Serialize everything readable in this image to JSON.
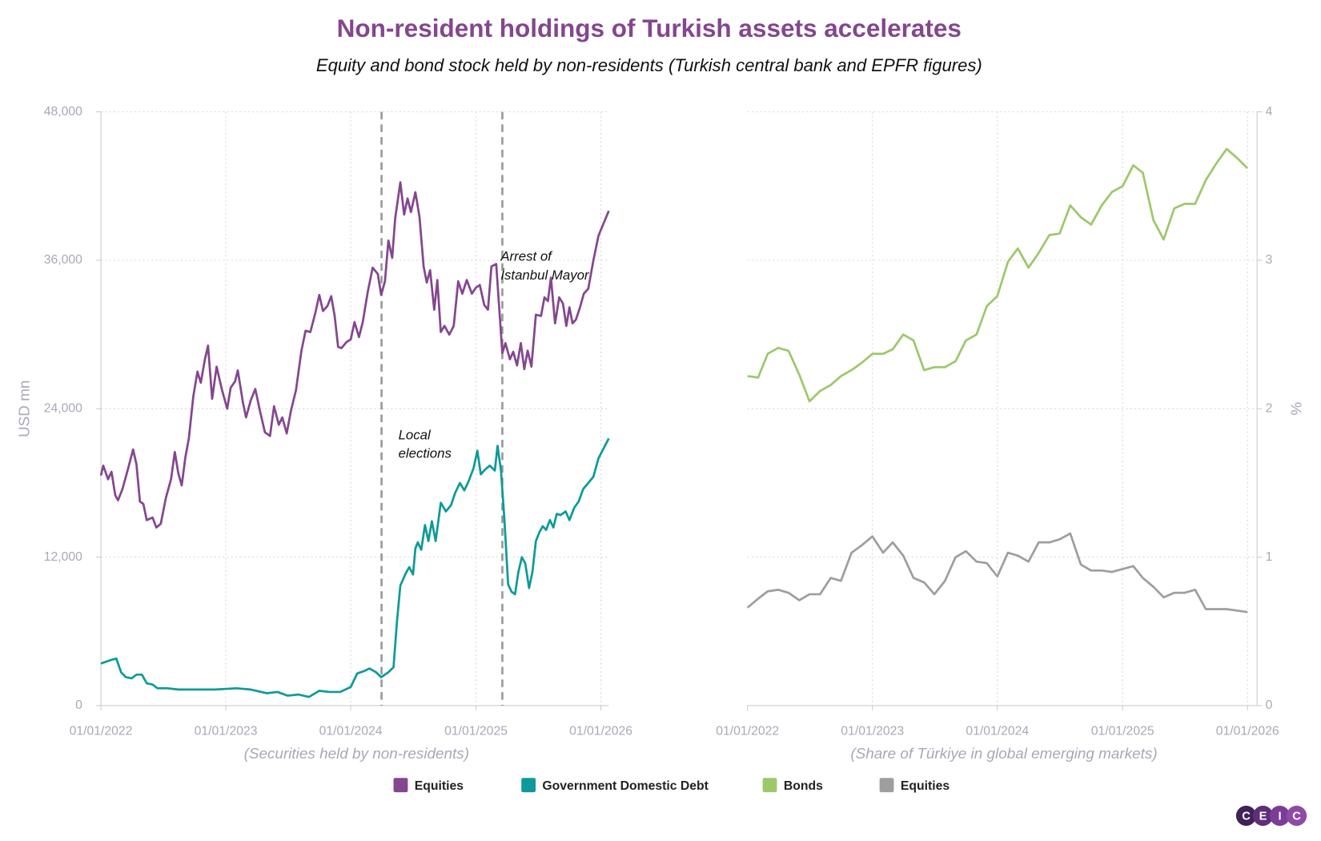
{
  "title": "Non-resident holdings of Turkish assets accelerates",
  "subtitle": "Equity and bond stock held by non-residents (Turkish central bank and EPFR figures)",
  "logo": [
    "C",
    "E",
    "I",
    "C"
  ],
  "chart_data": [
    {
      "type": "line",
      "y_label": "USD mn",
      "x_label": "(Securities held by non-residents)",
      "xlim": [
        "01/01/2022",
        "24/01/2026"
      ],
      "xticks": [
        "01/01/2022",
        "01/01/2023",
        "01/01/2024",
        "01/01/2025",
        "01/01/2026"
      ],
      "ylim": [
        0,
        48000
      ],
      "yticks": [
        0,
        {
          "value": 12000,
          "label": "12,000"
        },
        {
          "value": 24000,
          "label": "24,000"
        },
        {
          "value": 36000,
          "label": "36,000"
        },
        {
          "value": 48000,
          "label": "48,000"
        }
      ],
      "grid": true,
      "annotations": [
        {
          "x": "31/03/2024",
          "text": [
            "Local",
            "elections"
          ]
        },
        {
          "x": "19/03/2025",
          "text": [
            "Arrest of",
            "İstanbul Mayor"
          ]
        }
      ],
      "series": [
        {
          "name": "Equities",
          "color": "#84468f",
          "x": [
            "01/01/2022",
            "08/01/2022",
            "22/01/2022",
            "01/02/2022",
            "12/02/2022",
            "20/02/2022",
            "05/03/2022",
            "20/03/2022",
            "05/04/2022",
            "15/04/2022",
            "25/04/2022",
            "05/05/2022",
            "15/05/2022",
            "01/06/2022",
            "12/06/2022",
            "25/06/2022",
            "10/07/2022",
            "25/07/2022",
            "05/08/2022",
            "15/08/2022",
            "25/08/2022",
            "05/09/2022",
            "15/09/2022",
            "28/09/2022",
            "10/10/2022",
            "20/10/2022",
            "01/11/2022",
            "10/11/2022",
            "22/11/2022",
            "05/12/2022",
            "20/12/2022",
            "05/01/2023",
            "15/01/2023",
            "28/01/2023",
            "05/02/2023",
            "20/02/2023",
            "01/03/2023",
            "15/03/2023",
            "28/03/2023",
            "10/04/2023",
            "25/04/2023",
            "10/05/2023",
            "22/05/2023",
            "05/06/2023",
            "15/06/2023",
            "28/06/2023",
            "10/07/2023",
            "25/07/2023",
            "10/08/2023",
            "22/08/2023",
            "05/09/2023",
            "20/09/2023",
            "01/10/2023",
            "12/10/2023",
            "25/10/2023",
            "05/11/2023",
            "15/11/2023",
            "25/11/2023",
            "05/12/2023",
            "20/12/2023",
            "01/01/2024",
            "12/01/2024",
            "25/01/2024",
            "05/02/2024",
            "20/02/2024",
            "05/03/2024",
            "20/03/2024",
            "30/03/2024",
            "10/04/2024",
            "20/04/2024",
            "01/05/2024",
            "10/05/2024",
            "25/05/2024",
            "05/06/2024",
            "15/06/2024",
            "25/06/2024",
            "08/07/2024",
            "20/07/2024",
            "01/08/2024",
            "10/08/2024",
            "20/08/2024",
            "01/09/2024",
            "10/09/2024",
            "20/09/2024",
            "01/10/2024",
            "15/10/2024",
            "28/10/2024",
            "10/11/2024",
            "22/11/2024",
            "05/12/2024",
            "20/12/2024",
            "01/01/2025",
            "12/01/2025",
            "25/01/2025",
            "05/02/2025",
            "15/02/2025",
            "01/03/2025",
            "19/03/2025",
            "28/03/2025",
            "10/04/2025",
            "20/04/2025",
            "01/05/2025",
            "12/05/2025",
            "22/05/2025",
            "01/06/2025",
            "12/06/2025",
            "25/06/2025",
            "10/07/2025",
            "20/07/2025",
            "30/07/2025",
            "08/08/2025",
            "20/08/2025",
            "01/09/2025",
            "12/09/2025",
            "22/09/2025",
            "01/10/2025",
            "10/10/2025",
            "20/10/2025",
            "01/11/2025",
            "12/11/2025",
            "25/11/2025",
            "10/12/2025",
            "25/12/2025",
            "24/01/2026"
          ],
          "values": [
            18600,
            19400,
            18300,
            18900,
            17000,
            16600,
            17500,
            19000,
            20700,
            19500,
            16500,
            16300,
            15000,
            15200,
            14400,
            14700,
            16800,
            18300,
            20500,
            18800,
            17800,
            20100,
            21600,
            25000,
            27000,
            26100,
            28000,
            29100,
            24800,
            27400,
            25600,
            24000,
            25700,
            26200,
            27100,
            24500,
            23300,
            24700,
            25600,
            23900,
            22100,
            21800,
            24200,
            22700,
            23300,
            22000,
            23800,
            25500,
            28700,
            30300,
            30200,
            31800,
            33200,
            31900,
            32300,
            33100,
            31500,
            29000,
            28900,
            29400,
            29600,
            31000,
            29800,
            31000,
            33500,
            35400,
            34900,
            33200,
            34300,
            37600,
            36200,
            39400,
            42300,
            39700,
            41000,
            39900,
            41500,
            39500,
            35500,
            34200,
            35200,
            32000,
            34400,
            30200,
            30700,
            30000,
            30700,
            34300,
            33300,
            34400,
            33300,
            33800,
            34000,
            32400,
            32000,
            35500,
            35700,
            28500,
            29300,
            28000,
            28600,
            27500,
            29300,
            27200,
            28700,
            27400,
            31600,
            31500,
            33000,
            32700,
            34600,
            30900,
            33000,
            32500,
            30700,
            32200,
            30900,
            31200,
            32200,
            33300,
            33700,
            36000,
            38000,
            40000
          ]
        },
        {
          "name": "Government Domestic Debt",
          "color": "#0e9a9a",
          "x": [
            "01/01/2022",
            "01/02/2022",
            "15/02/2022",
            "01/03/2022",
            "15/03/2022",
            "01/04/2022",
            "15/04/2022",
            "01/05/2022",
            "15/05/2022",
            "01/06/2022",
            "15/06/2022",
            "15/07/2022",
            "15/08/2022",
            "01/10/2022",
            "01/12/2022",
            "01/02/2023",
            "15/03/2023",
            "01/05/2023",
            "01/06/2023",
            "01/07/2023",
            "01/08/2023",
            "01/09/2023",
            "01/10/2023",
            "01/11/2023",
            "01/12/2023",
            "01/01/2024",
            "20/01/2024",
            "10/02/2024",
            "25/02/2024",
            "15/03/2024",
            "30/03/2024",
            "20/04/2024",
            "05/05/2024",
            "15/05/2024",
            "25/05/2024",
            "10/06/2024",
            "20/06/2024",
            "01/07/2024",
            "08/07/2024",
            "15/07/2024",
            "25/07/2024",
            "05/08/2024",
            "15/08/2024",
            "25/08/2024",
            "05/09/2024",
            "20/09/2024",
            "05/10/2024",
            "20/10/2024",
            "01/11/2024",
            "15/11/2024",
            "28/11/2024",
            "10/12/2024",
            "25/12/2024",
            "05/01/2025",
            "15/01/2025",
            "28/01/2025",
            "10/02/2025",
            "25/02/2025",
            "05/03/2025",
            "15/03/2025",
            "25/03/2025",
            "05/04/2025",
            "15/04/2025",
            "25/04/2025",
            "05/05/2025",
            "15/05/2025",
            "25/05/2025",
            "05/06/2025",
            "15/06/2025",
            "25/06/2025",
            "05/07/2025",
            "15/07/2025",
            "25/07/2025",
            "05/08/2025",
            "15/08/2025",
            "25/08/2025",
            "05/09/2025",
            "20/09/2025",
            "01/10/2025",
            "15/10/2025",
            "28/10/2025",
            "10/11/2025",
            "25/11/2025",
            "10/12/2025",
            "25/12/2025",
            "24/01/2026"
          ],
          "values": [
            3400,
            3700,
            3800,
            2700,
            2300,
            2200,
            2500,
            2500,
            1800,
            1700,
            1400,
            1400,
            1300,
            1300,
            1300,
            1400,
            1300,
            1000,
            1100,
            800,
            900,
            700,
            1200,
            1100,
            1100,
            1500,
            2600,
            2800,
            3000,
            2700,
            2300,
            2700,
            3100,
            6800,
            9700,
            10700,
            11200,
            10600,
            12700,
            13200,
            12600,
            14600,
            13300,
            14900,
            13300,
            16400,
            15700,
            16200,
            17200,
            18000,
            17400,
            18100,
            19200,
            20600,
            18700,
            19100,
            19400,
            19000,
            21000,
            19000,
            15000,
            9800,
            9200,
            9000,
            10800,
            12000,
            11500,
            9500,
            10800,
            13300,
            14000,
            14500,
            14200,
            15000,
            14400,
            15500,
            15400,
            15700,
            15000,
            16000,
            16500,
            17500,
            18000,
            18500,
            20000,
            21600
          ]
        }
      ]
    },
    {
      "type": "line",
      "y_label": "%",
      "x_label": "(Share of Türkiye in global emerging markets)",
      "xlim": [
        "01/01/2022",
        "29/01/2026"
      ],
      "xticks": [
        "01/01/2022",
        "01/01/2023",
        "01/01/2024",
        "01/01/2025",
        "01/01/2026"
      ],
      "ylim": [
        0,
        4
      ],
      "yticks": [
        0,
        1,
        2,
        3,
        4
      ],
      "grid": true,
      "x": [
        "01/01/2022",
        "01/02/2022",
        "01/03/2022",
        "01/04/2022",
        "01/05/2022",
        "01/06/2022",
        "01/07/2022",
        "01/08/2022",
        "01/09/2022",
        "01/10/2022",
        "01/11/2022",
        "01/12/2022",
        "01/01/2023",
        "01/02/2023",
        "01/03/2023",
        "01/04/2023",
        "01/05/2023",
        "01/06/2023",
        "01/07/2023",
        "01/08/2023",
        "01/09/2023",
        "01/10/2023",
        "01/11/2023",
        "01/12/2023",
        "01/01/2024",
        "01/02/2024",
        "01/03/2024",
        "01/04/2024",
        "01/05/2024",
        "01/06/2024",
        "01/07/2024",
        "01/08/2024",
        "01/09/2024",
        "01/10/2024",
        "01/11/2024",
        "01/12/2024",
        "01/01/2025",
        "01/02/2025",
        "01/03/2025",
        "01/04/2025",
        "01/05/2025",
        "01/06/2025",
        "01/07/2025",
        "01/08/2025",
        "01/09/2025",
        "01/10/2025",
        "01/11/2025",
        "01/12/2025",
        "01/01/2026"
      ],
      "series": [
        {
          "name": "Bonds",
          "color": "#9dc86a",
          "values": [
            2.22,
            2.21,
            2.37,
            2.41,
            2.39,
            2.23,
            2.05,
            2.12,
            2.16,
            2.22,
            2.26,
            2.31,
            2.37,
            2.37,
            2.4,
            2.5,
            2.46,
            2.26,
            2.28,
            2.28,
            2.32,
            2.46,
            2.5,
            2.69,
            2.76,
            2.99,
            3.08,
            2.95,
            3.05,
            3.17,
            3.18,
            3.37,
            3.29,
            3.24,
            3.37,
            3.46,
            3.5,
            3.64,
            3.59,
            3.27,
            3.14,
            3.35,
            3.38,
            3.38,
            3.54,
            3.65,
            3.75,
            3.69,
            3.62
          ]
        },
        {
          "name": "Equities",
          "color": "#9e9e9e",
          "values": [
            0.66,
            0.72,
            0.77,
            0.78,
            0.76,
            0.71,
            0.75,
            0.75,
            0.86,
            0.84,
            1.03,
            1.08,
            1.14,
            1.03,
            1.1,
            1.01,
            0.86,
            0.83,
            0.75,
            0.84,
            1,
            1.04,
            0.97,
            0.96,
            0.87,
            1.03,
            1.01,
            0.97,
            1.1,
            1.1,
            1.12,
            1.16,
            0.95,
            0.91,
            0.91,
            0.9,
            0.92,
            0.94,
            0.86,
            0.8,
            0.73,
            0.76,
            0.76,
            0.78,
            0.65,
            0.65,
            0.65,
            0.64,
            0.63
          ]
        }
      ]
    }
  ]
}
